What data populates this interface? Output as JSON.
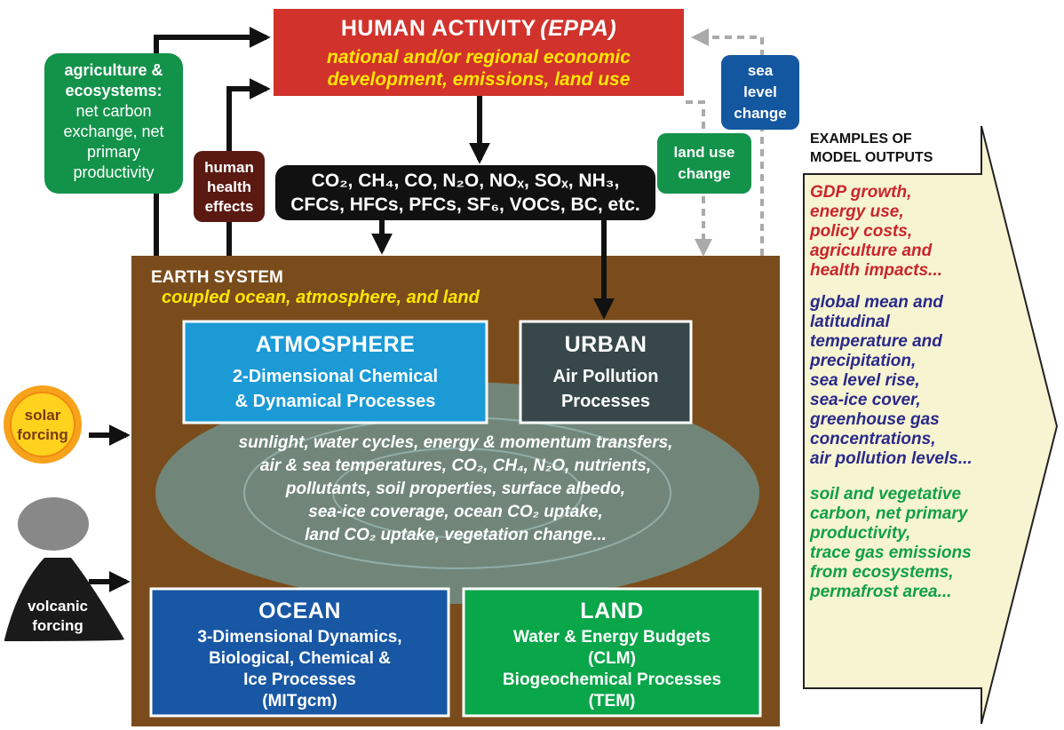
{
  "human_activity": {
    "title": "HUMAN ACTIVITY",
    "model": "(EPPA)",
    "description": [
      "national and/or regional economic",
      "development, emissions, land use"
    ]
  },
  "emissions": [
    "CO₂, CH₄, CO, N₂O, NOₓ, SOₓ, NH₃,",
    "CFCs, HFCs, PFCs, SF₆, VOCs, BC, etc."
  ],
  "feedbacks": {
    "agriculture": {
      "label": [
        "agriculture &",
        "ecosystems:"
      ],
      "detail": [
        "net carbon",
        "exchange, net",
        "primary",
        "productivity"
      ]
    },
    "health": [
      "human",
      "health",
      "effects"
    ],
    "land_use": [
      "land use",
      "change"
    ],
    "sea_level": [
      "sea",
      "level",
      "change"
    ]
  },
  "earth_system": {
    "title": "EARTH SYSTEM",
    "subtitle": "coupled ocean, atmosphere, and land",
    "atmosphere": {
      "title": "ATMOSPHERE",
      "lines": [
        "2-Dimensional Chemical",
        "& Dynamical Processes"
      ]
    },
    "urban": {
      "title": "URBAN",
      "lines": [
        "Air Pollution",
        "Processes"
      ]
    },
    "processes": [
      "sunlight, water cycles, energy & momentum transfers,",
      "air & sea temperatures, CO₂, CH₄, N₂O, nutrients,",
      "pollutants, soil properties, surface albedo,",
      "sea-ice coverage, ocean CO₂ uptake,",
      "land CO₂ uptake, vegetation change..."
    ],
    "ocean": {
      "title": "OCEAN",
      "lines": [
        "3-Dimensional Dynamics,",
        "Biological, Chemical &",
        "Ice Processes",
        "(MITgcm)"
      ]
    },
    "land": {
      "title": "LAND",
      "lines": [
        "Water & Energy Budgets",
        "(CLM)",
        "Biogeochemical Processes",
        "(TEM)"
      ]
    }
  },
  "forcings": {
    "solar": [
      "solar",
      "forcing"
    ],
    "volcanic": [
      "volcanic",
      "forcing"
    ]
  },
  "outputs": {
    "heading": [
      "EXAMPLES OF",
      "MODEL OUTPUTS"
    ],
    "economic": [
      "GDP growth,",
      "energy use,",
      "policy costs,",
      "agriculture and",
      "health impacts..."
    ],
    "climate": [
      "global mean and",
      "latitudinal",
      "temperature and",
      "precipitation,",
      "sea level rise,",
      "sea-ice cover,",
      "greenhouse gas",
      "concentrations,",
      "air pollution levels..."
    ],
    "ecosystem": [
      "soil  and vegetative",
      "carbon, net primary",
      "productivity,",
      "trace gas emissions",
      "from ecosystems,",
      "permafrost area..."
    ]
  }
}
